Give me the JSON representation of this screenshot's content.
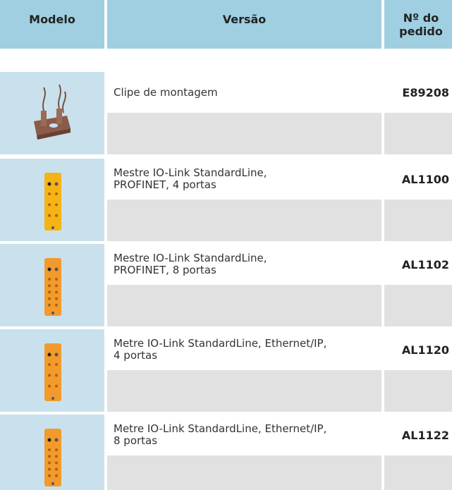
{
  "header": {
    "columns": [
      "Modelo",
      "Versão",
      "Nº do pedido"
    ]
  },
  "rows": [
    {
      "version": "Clipe de montagem",
      "order": "E89208"
    },
    {
      "version": "Mestre IO-Link StandardLine,\nPROFINET, 4 portas",
      "order": "AL1100"
    },
    {
      "version": "Mestre IO-Link StandardLine,\nPROFINET, 8 portas",
      "order": "AL1102"
    },
    {
      "version": "Metre IO-Link StandardLine, Ethernet/IP,\n4 portas",
      "order": "AL1120"
    },
    {
      "version": "Metre IO-Link StandardLine, Ethernet/IP,\n8 portas",
      "order": "AL1122"
    }
  ]
}
